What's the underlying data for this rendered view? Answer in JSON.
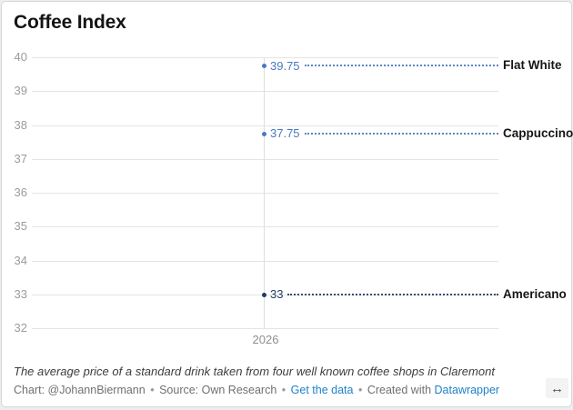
{
  "header": {
    "title": "Coffee Index"
  },
  "chart_data": {
    "type": "line",
    "title": "Coffee Index",
    "x": [
      "2026"
    ],
    "series": [
      {
        "name": "Flat White",
        "values": [
          39.75
        ],
        "value_label": "39.75",
        "color": "#4a79bd"
      },
      {
        "name": "Cappuccino",
        "values": [
          37.75
        ],
        "value_label": "37.75",
        "color": "#4a79bd"
      },
      {
        "name": "Americano",
        "values": [
          33
        ],
        "value_label": "33",
        "color": "#1d3c61"
      }
    ],
    "ylim": [
      32,
      40
    ],
    "yticks": [
      40,
      39,
      38,
      37,
      36,
      35,
      34,
      33,
      32
    ],
    "xticks": [
      "2026"
    ],
    "grid": true,
    "legend_position": "right-inline-labels",
    "value_labels_shown": true,
    "grid_color": "#e4e4e4",
    "tick_label_color": "#9b9b9b"
  },
  "footer": {
    "notes": "The average price of a standard drink taken from four well known coffee shops in Claremont",
    "chart_credit": "Chart: @JohannBiermann",
    "separator": "•",
    "source_text": "Source: Own Research",
    "get_data_link": "Get the data",
    "created_with_text": "Created with",
    "datawrapper_link": "Datawrapper",
    "link_color": "#1e82c8"
  },
  "icons": {
    "resize_icon": "↔"
  }
}
